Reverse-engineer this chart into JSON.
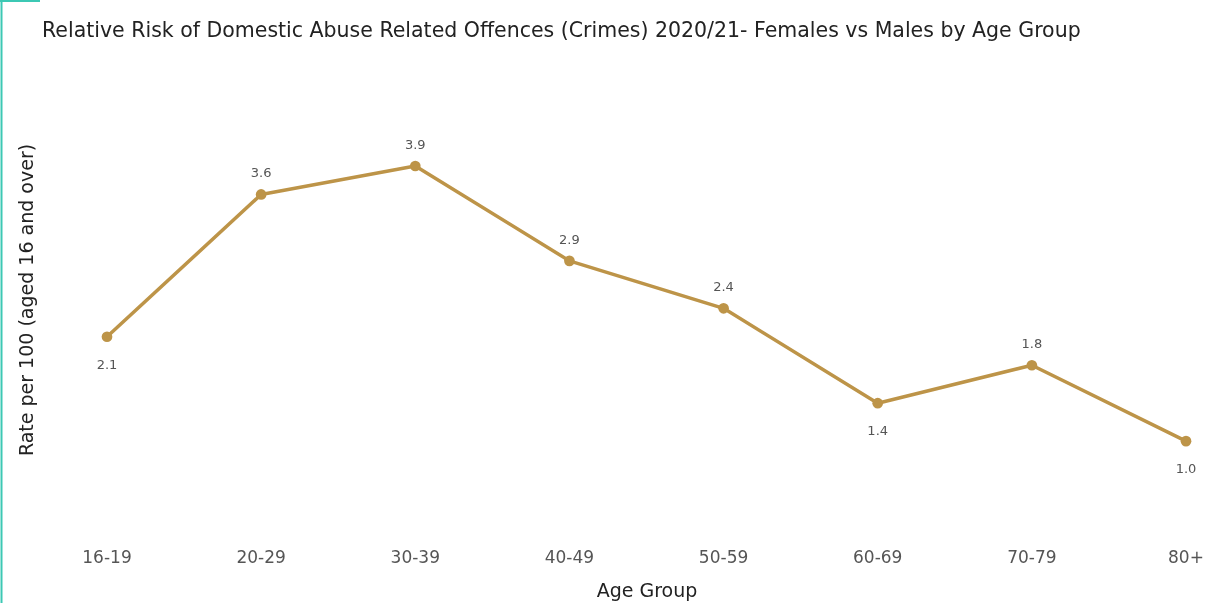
{
  "chart_data": {
    "type": "line",
    "title": "Relative Risk of Domestic Abuse Related Offences (Crimes) 2020/21- Females vs Males by Age Group",
    "xlabel": "Age Group",
    "ylabel": "Rate per 100 (aged 16 and over)",
    "categories": [
      "16-19",
      "20-29",
      "30-39",
      "40-49",
      "50-59",
      "60-69",
      "70-79",
      "80+"
    ],
    "series": [
      {
        "color": "#bd9448",
        "values": [
          2.1,
          3.6,
          3.9,
          2.9,
          2.4,
          1.4,
          1.8,
          1.0
        ],
        "value_labels": [
          "2.1",
          "3.6",
          "3.9",
          "2.9",
          "2.4",
          "1.4",
          "1.8",
          "1.0"
        ]
      }
    ],
    "marker": "circle",
    "tick_labels": "x"
  }
}
